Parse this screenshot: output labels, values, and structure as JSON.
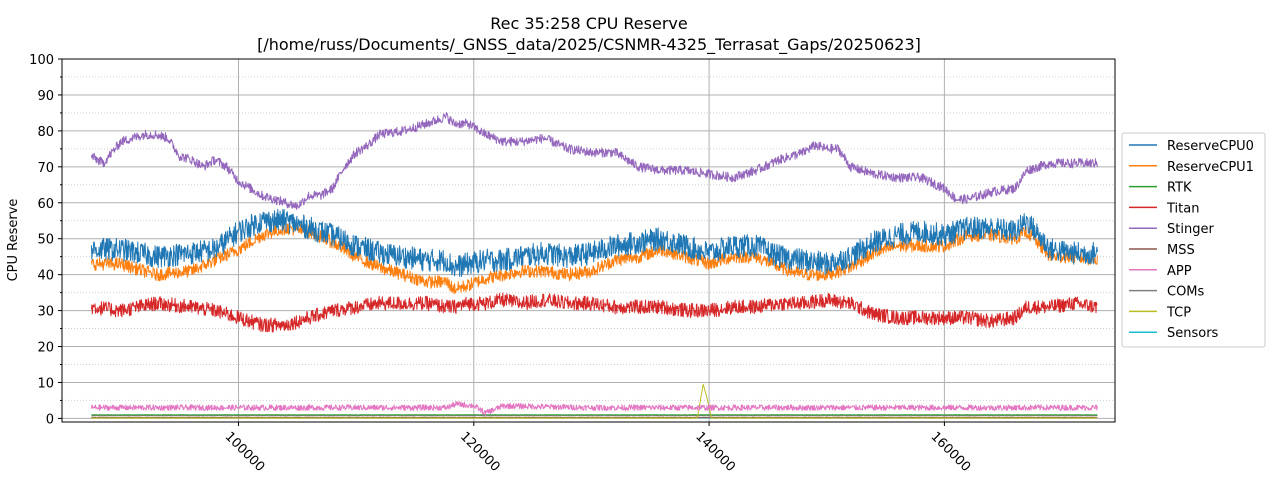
{
  "chart_data": {
    "type": "line",
    "title": "Rec 35:258 CPU Reserve",
    "subtitle": "[/home/russ/Documents/_GNSS_data/2025/CSNMR-4325_Terrasat_Gaps/20250623]",
    "xlabel": "",
    "ylabel": "CPU Reserve",
    "xlim": [
      85000,
      174500
    ],
    "ylim": [
      -1,
      100
    ],
    "x_ticks": [
      100000,
      120000,
      140000,
      160000
    ],
    "x_tick_labels": [
      "100000",
      "120000",
      "140000",
      "160000"
    ],
    "y_ticks": [
      0,
      10,
      20,
      30,
      40,
      50,
      60,
      70,
      80,
      90,
      100
    ],
    "y_tick_labels": [
      "0",
      "10",
      "20",
      "30",
      "40",
      "50",
      "60",
      "70",
      "80",
      "90",
      "100"
    ],
    "grid": "major solid, minor dotted (y)",
    "legend_position": "right, outside",
    "x_range": [
      87500,
      173000
    ],
    "series": [
      {
        "name": "ReserveCPU0",
        "color": "#1f77b4",
        "x": [
          87500,
          90000,
          93000,
          96000,
          98000,
          100000,
          102000,
          104000,
          106000,
          108000,
          110000,
          112000,
          114000,
          116000,
          117700,
          118300,
          119500,
          121000,
          122500,
          124000,
          126000,
          128000,
          130000,
          132000,
          134000,
          136000,
          138000,
          140000,
          142000,
          144000,
          146000,
          148000,
          150000,
          152000,
          154000,
          156000,
          158000,
          160000,
          162000,
          164000,
          166000,
          167000,
          169000,
          171000,
          173000
        ],
        "values": [
          47,
          47,
          45,
          46,
          47,
          52,
          55,
          55,
          53,
          51,
          48,
          46,
          45,
          44,
          44,
          42,
          43,
          44,
          44,
          45,
          46,
          45,
          46,
          48,
          49,
          50,
          48,
          46,
          48,
          48,
          45,
          44,
          43,
          45,
          49,
          51,
          52,
          51,
          53,
          53,
          52,
          55,
          47,
          46,
          46
        ]
      },
      {
        "name": "ReserveCPU1",
        "color": "#ff7f0e",
        "x": [
          87500,
          90000,
          93000,
          96000,
          98000,
          100000,
          102000,
          104000,
          106000,
          108000,
          110000,
          112000,
          114000,
          116000,
          117700,
          118300,
          119500,
          121000,
          122500,
          124000,
          126000,
          128000,
          130000,
          132000,
          134000,
          136000,
          138000,
          140000,
          142000,
          144000,
          146000,
          148000,
          150000,
          152000,
          154000,
          156000,
          158000,
          160000,
          162000,
          164000,
          166000,
          167000,
          169000,
          171000,
          173000
        ],
        "values": [
          43,
          43,
          40,
          41,
          44,
          47,
          51,
          53,
          52,
          49,
          45,
          42,
          40,
          38,
          38,
          36,
          37,
          39,
          40,
          41,
          41,
          40,
          41,
          44,
          45,
          47,
          45,
          43,
          45,
          45,
          42,
          40,
          40,
          42,
          46,
          48,
          48,
          48,
          51,
          51,
          50,
          52,
          45,
          45,
          44
        ]
      },
      {
        "name": "RTK",
        "color": "#2ca02c",
        "x": [
          87500,
          120000,
          140000,
          173000
        ],
        "values": [
          1.0,
          1.0,
          1.0,
          1.0
        ]
      },
      {
        "name": "Titan",
        "color": "#d62728",
        "x": [
          87500,
          90000,
          93000,
          96000,
          98000,
          100000,
          102000,
          104000,
          106000,
          108000,
          110000,
          112000,
          114000,
          116000,
          117700,
          118300,
          119500,
          121000,
          122500,
          124000,
          126000,
          128000,
          130000,
          132000,
          134000,
          136000,
          138000,
          140000,
          142000,
          144000,
          146000,
          148000,
          150000,
          152000,
          154000,
          156000,
          158000,
          160000,
          162000,
          164000,
          166000,
          167000,
          169000,
          171000,
          173000
        ],
        "values": [
          31,
          30,
          32,
          31,
          30,
          28,
          26,
          26,
          28,
          30,
          31,
          32,
          32,
          32,
          31,
          31,
          32,
          32,
          33,
          32,
          33,
          32,
          32,
          31,
          31,
          31,
          30,
          30,
          31,
          31,
          32,
          32,
          33,
          32,
          29,
          28,
          28,
          28,
          28,
          27,
          28,
          31,
          31,
          32,
          31
        ]
      },
      {
        "name": "Stinger",
        "color": "#9467bd",
        "x": [
          87500,
          88500,
          90000,
          92000,
          93000,
          94000,
          95000,
          96000,
          97000,
          98000,
          99000,
          100000,
          101000,
          102000,
          103000,
          104000,
          105000,
          106000,
          107000,
          108000,
          109000,
          110000,
          111000,
          112000,
          114000,
          116000,
          117700,
          118300,
          119500,
          121000,
          122500,
          124000,
          126000,
          128000,
          130000,
          132000,
          134000,
          136000,
          138000,
          140000,
          142000,
          144000,
          146000,
          148000,
          149000,
          150000,
          151000,
          152000,
          154000,
          156000,
          158000,
          160000,
          161000,
          162000,
          164000,
          166000,
          167000,
          169000,
          171000,
          173000
        ],
        "values": [
          73,
          71,
          77,
          79,
          79,
          78,
          73,
          72,
          70,
          72,
          70,
          66,
          64,
          62,
          61,
          60,
          59,
          62,
          62,
          64,
          70,
          74,
          76,
          79,
          80,
          82,
          84,
          82,
          82,
          79,
          77,
          77,
          78,
          75,
          74,
          74,
          70,
          69,
          69,
          68,
          67,
          69,
          72,
          74,
          76,
          75,
          75,
          70,
          68,
          67,
          67,
          64,
          61,
          61,
          63,
          64,
          69,
          71,
          71,
          71
        ]
      },
      {
        "name": "MSS",
        "color": "#8c564b",
        "x": [
          87500,
          120000,
          140000,
          173000
        ],
        "values": [
          0.3,
          0.3,
          0.3,
          0.3
        ]
      },
      {
        "name": "APP",
        "color": "#e377c2",
        "x": [
          87500,
          100000,
          110000,
          117700,
          118500,
          120000,
          121000,
          122500,
          130000,
          140000,
          150000,
          160000,
          173000
        ],
        "values": [
          3.0,
          3.0,
          3.0,
          3.0,
          4.0,
          3.5,
          1.5,
          3.5,
          3.0,
          3.0,
          3.0,
          3.0,
          3.0
        ]
      },
      {
        "name": "COMs",
        "color": "#7f7f7f",
        "x": [
          87500,
          120000,
          140000,
          173000
        ],
        "values": [
          0.8,
          0.8,
          0.8,
          0.8
        ]
      },
      {
        "name": "TCP",
        "color": "#bcbd22",
        "x": [
          87500,
          139000,
          139500,
          139800,
          140200,
          173000
        ],
        "values": [
          0.1,
          0.1,
          9.5,
          6.0,
          0.1,
          0.1
        ]
      },
      {
        "name": "Sensors",
        "color": "#17becf",
        "x": [
          87500,
          120000,
          140000,
          173000
        ],
        "values": [
          0.2,
          0.2,
          0.2,
          0.2
        ]
      }
    ]
  }
}
